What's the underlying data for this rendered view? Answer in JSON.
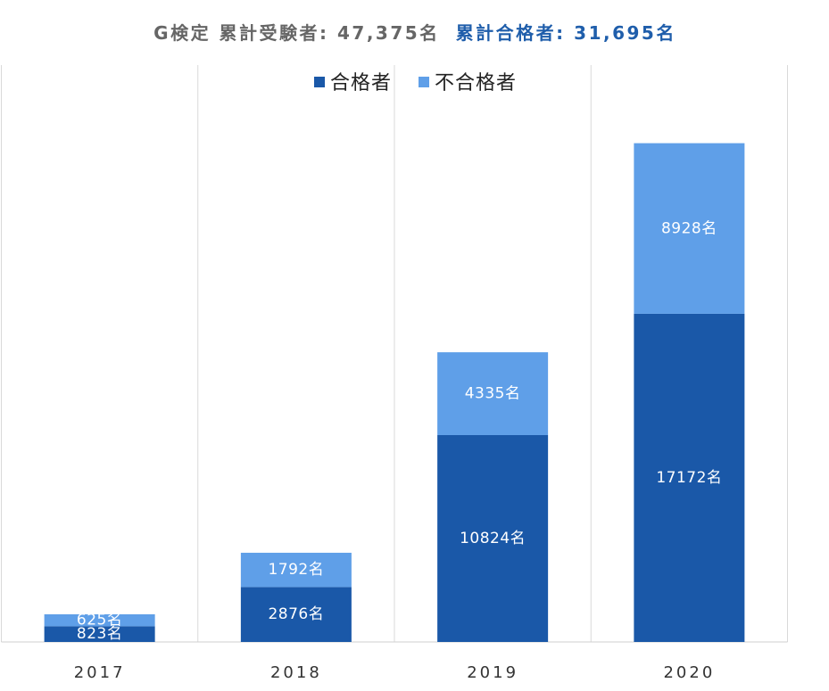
{
  "chart_data": {
    "type": "bar",
    "stacked": true,
    "title_parts": [
      {
        "text": "G検定 累計受験者: 47,375名",
        "color": "#666666"
      },
      {
        "text": "累計合格者: 31,695名",
        "color": "#1f5eab"
      }
    ],
    "categories": [
      "2017",
      "2018",
      "2019",
      "2020"
    ],
    "series": [
      {
        "name": "合格者",
        "color": "#1a58a8",
        "values": [
          823,
          2876,
          10824,
          17172
        ],
        "data_labels": [
          "823名",
          "2876名",
          "10824名",
          "17172名"
        ]
      },
      {
        "name": "不合格者",
        "color": "#5f9fe8",
        "values": [
          625,
          1792,
          4335,
          8928
        ],
        "data_labels": [
          "625名",
          "1792名",
          "4335名",
          "8928名"
        ]
      }
    ],
    "ylim": [
      0,
      30000
    ],
    "y_axis_visible": false,
    "grid": {
      "vertical": true,
      "horizontal": false
    },
    "legend_position": "top"
  }
}
